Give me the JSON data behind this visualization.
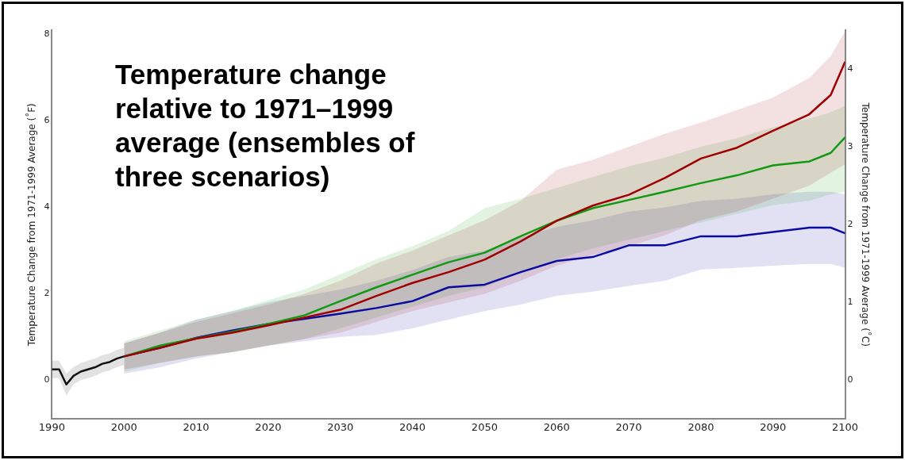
{
  "chart_data": {
    "type": "line",
    "title": "Temperature change relative to 1971–1999 average (ensembles of three scenarios)",
    "ylabel": "Temperature Change from 1971-1999 Average (˚F)",
    "y2label": "Temperature Change from 1971-1999 Average (˚C)",
    "xlim": [
      1990,
      2100
    ],
    "xticks": [
      1990,
      2000,
      2010,
      2020,
      2030,
      2040,
      2050,
      2060,
      2070,
      2080,
      2090,
      2100
    ],
    "ylim": [
      -0.9,
      8.1
    ],
    "yticks": [
      0,
      2,
      4,
      6,
      8
    ],
    "y2lim": [
      -0.5,
      4.5
    ],
    "y2ticks": [
      0,
      1,
      2,
      3,
      4
    ],
    "grid": false,
    "legend": false,
    "series": [
      {
        "color": "#111111",
        "x": [
          1990,
          1991,
          1992,
          1993,
          1994,
          1995,
          1996,
          1997,
          1998,
          1999,
          2000
        ],
        "values": [
          0.25,
          0.25,
          -0.1,
          0.1,
          0.2,
          0.25,
          0.3,
          0.38,
          0.42,
          0.5,
          0.55
        ],
        "lower": [
          0.05,
          0.05,
          -0.35,
          -0.1,
          0.0,
          0.05,
          0.1,
          0.18,
          0.22,
          0.3,
          0.35
        ],
        "upper": [
          0.45,
          0.45,
          0.15,
          0.3,
          0.4,
          0.45,
          0.5,
          0.58,
          0.62,
          0.7,
          0.75
        ]
      },
      {
        "color": "#a00000",
        "x": [
          2000,
          2005,
          2010,
          2015,
          2020,
          2025,
          2030,
          2035,
          2040,
          2045,
          2050,
          2055,
          2060,
          2065,
          2070,
          2075,
          2080,
          2085,
          2090,
          2095,
          2098,
          2100
        ],
        "values": [
          0.55,
          0.75,
          0.96,
          1.1,
          1.27,
          1.45,
          1.63,
          1.95,
          2.25,
          2.5,
          2.79,
          3.21,
          3.69,
          4.04,
          4.29,
          4.68,
          5.13,
          5.38,
          5.77,
          6.15,
          6.6,
          7.37
        ],
        "lower": [
          0.25,
          0.4,
          0.55,
          0.65,
          0.8,
          0.95,
          1.1,
          1.35,
          1.6,
          1.8,
          2.0,
          2.3,
          2.65,
          2.9,
          3.1,
          3.35,
          3.7,
          3.9,
          4.2,
          4.5,
          4.8,
          5.0
        ],
        "upper": [
          0.85,
          1.1,
          1.35,
          1.55,
          1.75,
          2.0,
          2.3,
          2.7,
          3.0,
          3.35,
          3.7,
          4.15,
          4.87,
          5.1,
          5.4,
          5.7,
          5.96,
          6.25,
          6.54,
          6.99,
          7.5,
          8.08
        ]
      },
      {
        "color": "#119911",
        "x": [
          2000,
          2005,
          2010,
          2015,
          2020,
          2025,
          2030,
          2035,
          2040,
          2045,
          2050,
          2055,
          2060,
          2065,
          2070,
          2075,
          2080,
          2085,
          2090,
          2095,
          2098,
          2100
        ],
        "values": [
          0.55,
          0.8,
          0.97,
          1.12,
          1.3,
          1.5,
          1.83,
          2.15,
          2.44,
          2.73,
          2.95,
          3.33,
          3.69,
          3.98,
          4.17,
          4.36,
          4.56,
          4.74,
          4.97,
          5.06,
          5.26,
          5.62
        ],
        "lower": [
          0.2,
          0.4,
          0.55,
          0.65,
          0.8,
          0.95,
          1.2,
          1.45,
          1.7,
          1.95,
          2.15,
          2.5,
          2.8,
          3.05,
          3.25,
          3.45,
          3.65,
          3.85,
          4.05,
          4.15,
          4.3,
          4.36
        ],
        "upper": [
          0.9,
          1.15,
          1.4,
          1.6,
          1.85,
          2.1,
          2.45,
          2.8,
          3.1,
          3.45,
          3.98,
          4.2,
          4.45,
          4.7,
          4.95,
          5.15,
          5.4,
          5.6,
          5.85,
          6.05,
          6.2,
          6.35
        ]
      },
      {
        "color": "#0b0ba0",
        "x": [
          2000,
          2005,
          2010,
          2015,
          2020,
          2025,
          2030,
          2035,
          2040,
          2045,
          2050,
          2055,
          2060,
          2065,
          2070,
          2075,
          2080,
          2085,
          2090,
          2095,
          2098,
          2100
        ],
        "values": [
          0.55,
          0.75,
          0.98,
          1.15,
          1.3,
          1.42,
          1.54,
          1.67,
          1.83,
          2.15,
          2.21,
          2.5,
          2.76,
          2.85,
          3.12,
          3.12,
          3.33,
          3.33,
          3.43,
          3.53,
          3.53,
          3.4
        ],
        "lower": [
          0.15,
          0.3,
          0.5,
          0.65,
          0.8,
          0.9,
          1.0,
          1.05,
          1.2,
          1.4,
          1.6,
          1.75,
          1.95,
          2.05,
          2.18,
          2.3,
          2.56,
          2.6,
          2.65,
          2.69,
          2.69,
          2.6
        ],
        "upper": [
          0.85,
          1.1,
          1.4,
          1.6,
          1.8,
          1.95,
          2.1,
          2.3,
          2.55,
          2.85,
          3.0,
          3.3,
          3.55,
          3.7,
          3.9,
          4.0,
          4.15,
          4.2,
          4.3,
          4.36,
          4.36,
          4.3
        ]
      }
    ]
  }
}
